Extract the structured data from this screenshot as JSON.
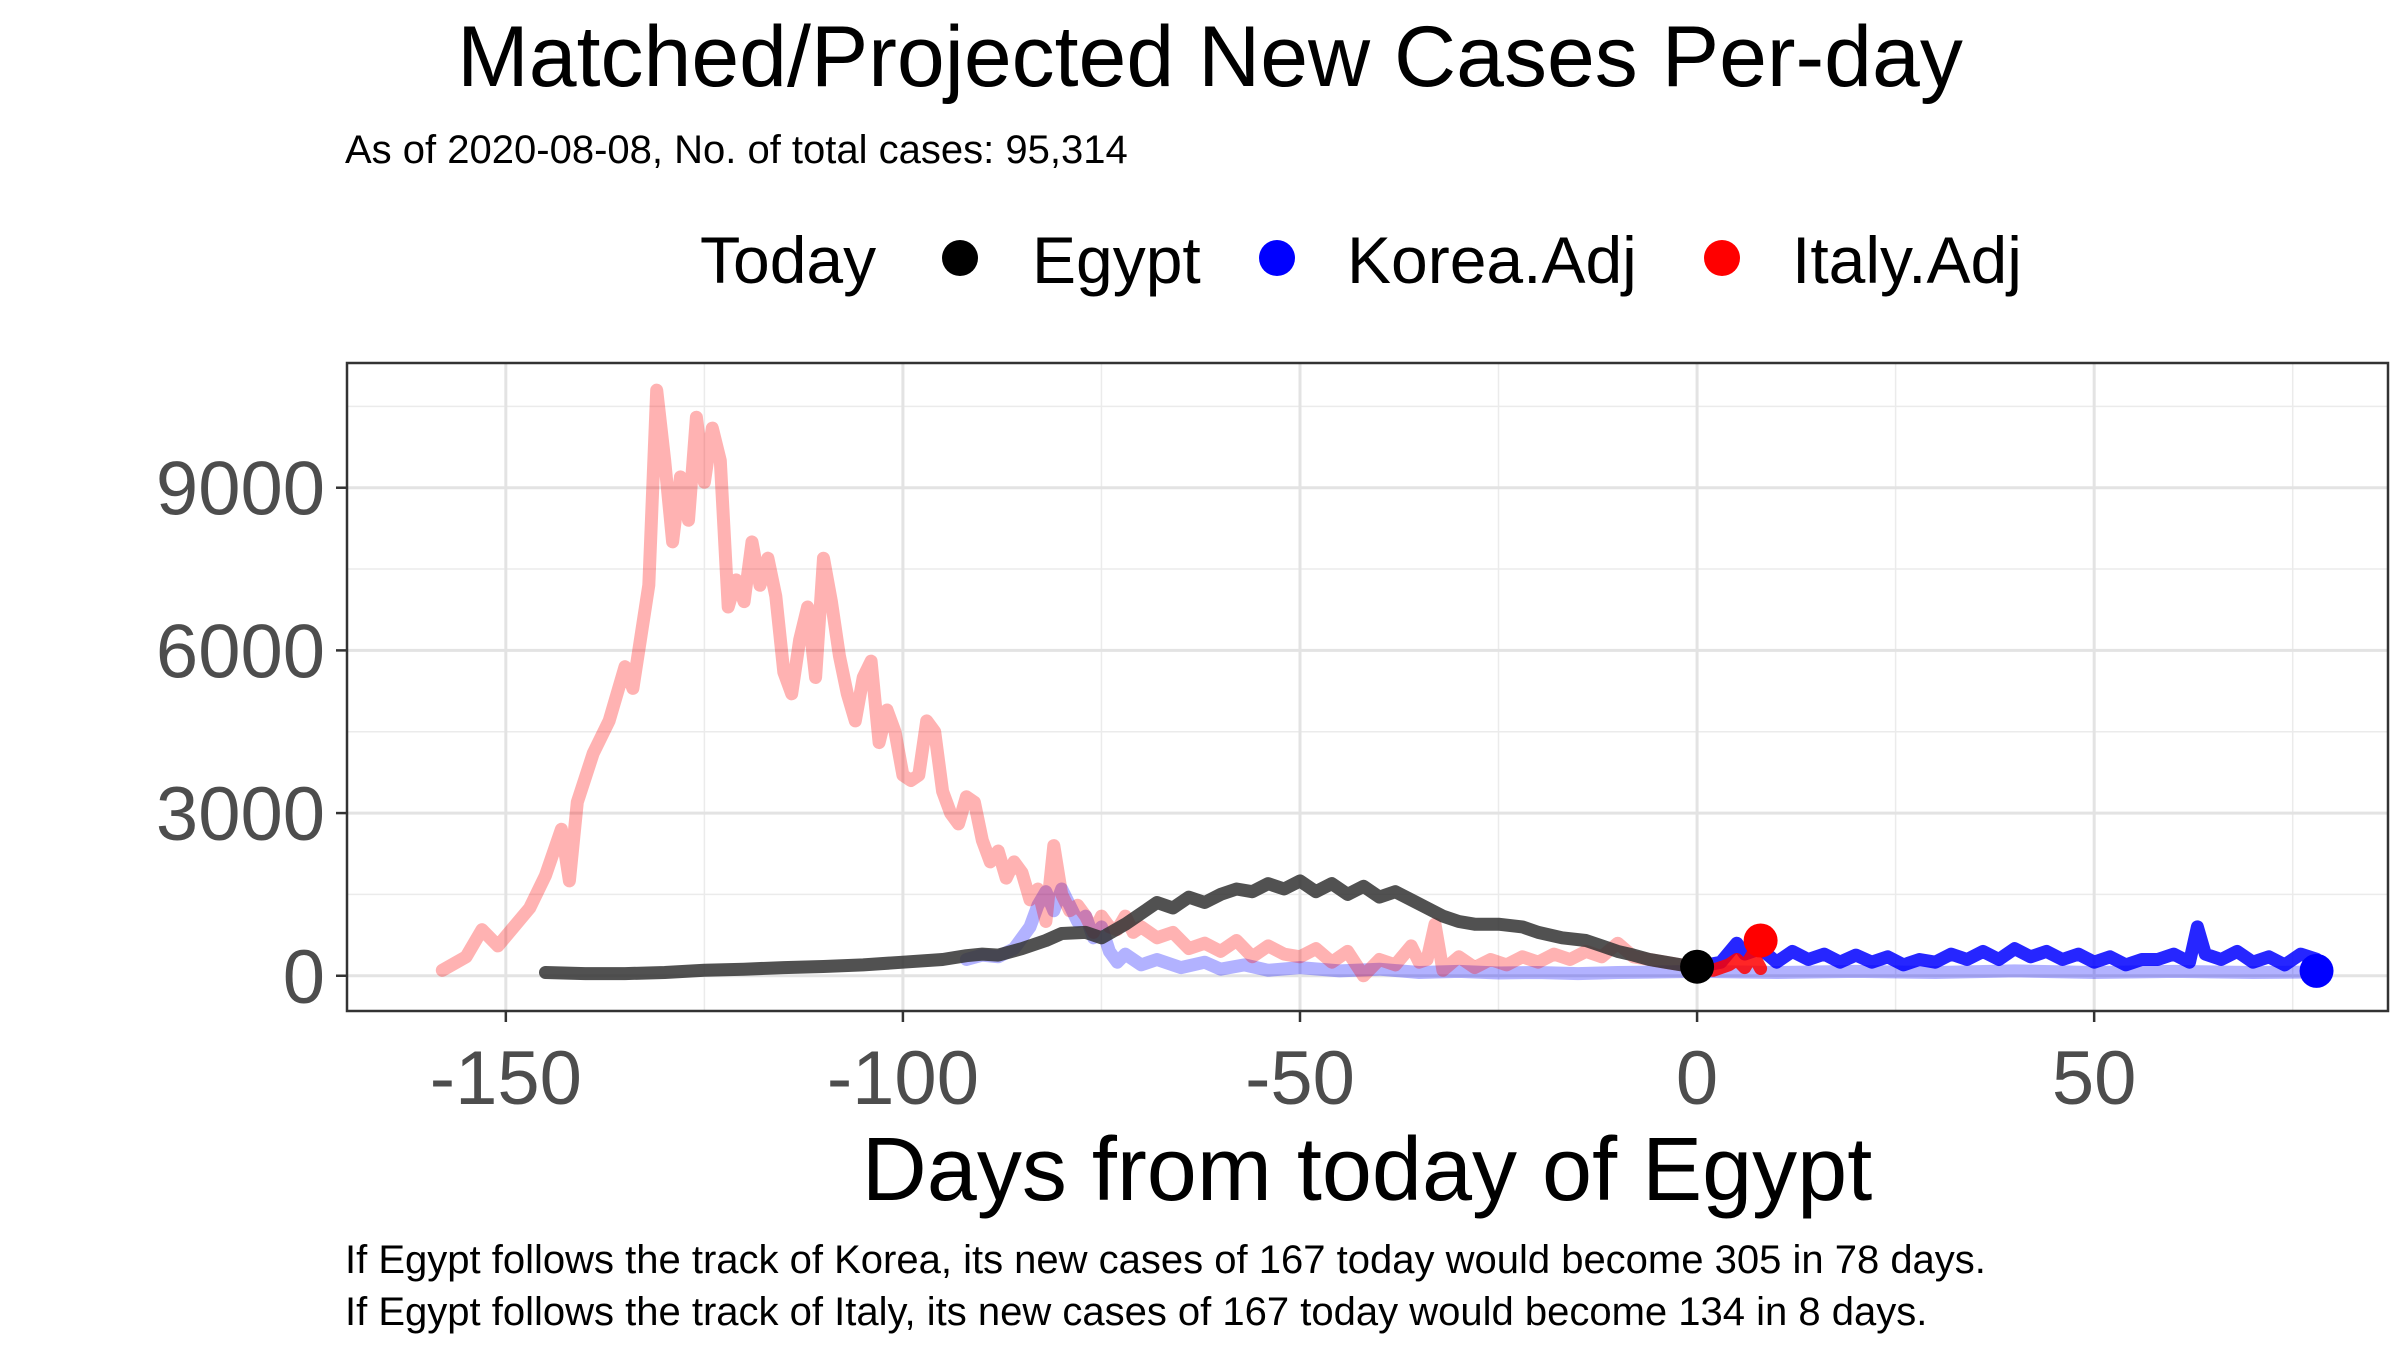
{
  "chart_data": {
    "type": "line",
    "title": "Matched/Projected New Cases Per-day",
    "subtitle": "As of 2020-08-08, No. of total cases: 95,314",
    "xlabel": "Days from today of Egypt",
    "ylabel": "",
    "xlim": [
      -170,
      87
    ],
    "ylim": [
      -650,
      11300
    ],
    "xticks": [
      -150,
      -100,
      -50,
      0,
      50
    ],
    "xtick_labels": [
      "-150",
      "-100",
      "-50",
      "0",
      "50"
    ],
    "yticks": [
      0,
      3000,
      6000,
      9000
    ],
    "ytick_labels": [
      "0",
      "3000",
      "6000",
      "9000"
    ],
    "grid": true,
    "legend_position": "top",
    "legend": {
      "title": "Today",
      "entries": [
        {
          "label": "Egypt",
          "color": "#000000"
        },
        {
          "label": "Korea.Adj",
          "color": "#0000ff"
        },
        {
          "label": "Italy.Adj",
          "color": "#ff0000"
        }
      ]
    },
    "series": [
      {
        "name": "Egypt",
        "role": "observed",
        "color": "#333333",
        "points": [
          [
            -145,
            60
          ],
          [
            -140,
            40
          ],
          [
            -135,
            40
          ],
          [
            -130,
            60
          ],
          [
            -125,
            100
          ],
          [
            -120,
            120
          ],
          [
            -115,
            150
          ],
          [
            -110,
            170
          ],
          [
            -105,
            200
          ],
          [
            -100,
            250
          ],
          [
            -95,
            300
          ],
          [
            -92,
            370
          ],
          [
            -90,
            400
          ],
          [
            -88,
            380
          ],
          [
            -85,
            500
          ],
          [
            -82,
            650
          ],
          [
            -80,
            780
          ],
          [
            -77,
            800
          ],
          [
            -75,
            700
          ],
          [
            -72,
            950
          ],
          [
            -70,
            1150
          ],
          [
            -68,
            1350
          ],
          [
            -66,
            1250
          ],
          [
            -64,
            1450
          ],
          [
            -62,
            1350
          ],
          [
            -60,
            1500
          ],
          [
            -58,
            1600
          ],
          [
            -56,
            1550
          ],
          [
            -54,
            1700
          ],
          [
            -52,
            1600
          ],
          [
            -50,
            1750
          ],
          [
            -48,
            1550
          ],
          [
            -46,
            1700
          ],
          [
            -44,
            1500
          ],
          [
            -42,
            1650
          ],
          [
            -40,
            1450
          ],
          [
            -38,
            1550
          ],
          [
            -36,
            1400
          ],
          [
            -34,
            1250
          ],
          [
            -32,
            1100
          ],
          [
            -30,
            1000
          ],
          [
            -28,
            950
          ],
          [
            -25,
            950
          ],
          [
            -22,
            900
          ],
          [
            -20,
            800
          ],
          [
            -17,
            700
          ],
          [
            -14,
            650
          ],
          [
            -12,
            550
          ],
          [
            -10,
            450
          ],
          [
            -8,
            380
          ],
          [
            -6,
            300
          ],
          [
            -4,
            250
          ],
          [
            -2,
            200
          ],
          [
            0,
            167
          ]
        ]
      },
      {
        "name": "Korea.Adj",
        "role": "matched",
        "color": "#0000ff",
        "opacity": 0.3,
        "points": [
          [
            -92,
            300
          ],
          [
            -90,
            380
          ],
          [
            -88,
            350
          ],
          [
            -86,
            500
          ],
          [
            -84,
            900
          ],
          [
            -83,
            1300
          ],
          [
            -82,
            1550
          ],
          [
            -81,
            1200
          ],
          [
            -80,
            1600
          ],
          [
            -79,
            1300
          ],
          [
            -78,
            1000
          ],
          [
            -77,
            1100
          ],
          [
            -76,
            700
          ],
          [
            -75,
            900
          ],
          [
            -74,
            450
          ],
          [
            -73,
            250
          ],
          [
            -72,
            400
          ],
          [
            -70,
            200
          ],
          [
            -68,
            300
          ],
          [
            -65,
            150
          ],
          [
            -62,
            250
          ],
          [
            -60,
            120
          ],
          [
            -57,
            200
          ],
          [
            -54,
            100
          ],
          [
            -50,
            150
          ],
          [
            -45,
            90
          ],
          [
            -40,
            120
          ],
          [
            -35,
            60
          ],
          [
            -30,
            80
          ],
          [
            -25,
            50
          ],
          [
            -20,
            60
          ],
          [
            -15,
            40
          ],
          [
            -10,
            60
          ],
          [
            -5,
            70
          ],
          [
            0,
            80
          ]
        ]
      },
      {
        "name": "Korea.Adj",
        "role": "projected",
        "color": "#0000ff",
        "points": [
          [
            0,
            167
          ],
          [
            3,
            250
          ],
          [
            5,
            600
          ],
          [
            6,
            400
          ],
          [
            8,
            500
          ],
          [
            10,
            250
          ],
          [
            12,
            450
          ],
          [
            14,
            300
          ],
          [
            16,
            400
          ],
          [
            18,
            250
          ],
          [
            20,
            380
          ],
          [
            22,
            250
          ],
          [
            24,
            350
          ],
          [
            26,
            200
          ],
          [
            28,
            300
          ],
          [
            30,
            250
          ],
          [
            32,
            400
          ],
          [
            34,
            300
          ],
          [
            36,
            450
          ],
          [
            38,
            300
          ],
          [
            40,
            500
          ],
          [
            42,
            350
          ],
          [
            44,
            450
          ],
          [
            46,
            300
          ],
          [
            48,
            400
          ],
          [
            50,
            250
          ],
          [
            52,
            350
          ],
          [
            54,
            200
          ],
          [
            56,
            300
          ],
          [
            58,
            300
          ],
          [
            60,
            400
          ],
          [
            62,
            250
          ],
          [
            63,
            900
          ],
          [
            64,
            400
          ],
          [
            66,
            300
          ],
          [
            68,
            450
          ],
          [
            70,
            250
          ],
          [
            72,
            350
          ],
          [
            74,
            200
          ],
          [
            76,
            400
          ],
          [
            78,
            305
          ]
        ]
      },
      {
        "name": "Korea.Adj",
        "role": "projected-band",
        "color": "#0000ff",
        "opacity": 0.3,
        "points": [
          [
            0,
            80
          ],
          [
            10,
            60
          ],
          [
            20,
            80
          ],
          [
            30,
            60
          ],
          [
            40,
            90
          ],
          [
            50,
            60
          ],
          [
            60,
            80
          ],
          [
            70,
            60
          ],
          [
            78,
            70
          ]
        ]
      },
      {
        "name": "Italy.Adj",
        "role": "matched",
        "color": "#ff0000",
        "opacity": 0.3,
        "points": [
          [
            -158,
            100
          ],
          [
            -155,
            350
          ],
          [
            -153,
            850
          ],
          [
            -151,
            550
          ],
          [
            -149,
            900
          ],
          [
            -147,
            1250
          ],
          [
            -145,
            1850
          ],
          [
            -143,
            2700
          ],
          [
            -142,
            1750
          ],
          [
            -141,
            3200
          ],
          [
            -139,
            4100
          ],
          [
            -137,
            4700
          ],
          [
            -135,
            5700
          ],
          [
            -134,
            5300
          ],
          [
            -132,
            7200
          ],
          [
            -131,
            10800
          ],
          [
            -130,
            9500
          ],
          [
            -129,
            8000
          ],
          [
            -128,
            9200
          ],
          [
            -127,
            8400
          ],
          [
            -126,
            10300
          ],
          [
            -125,
            9100
          ],
          [
            -124,
            10100
          ],
          [
            -123,
            9500
          ],
          [
            -122,
            6800
          ],
          [
            -121,
            7300
          ],
          [
            -120,
            6900
          ],
          [
            -119,
            8000
          ],
          [
            -118,
            7200
          ],
          [
            -117,
            7700
          ],
          [
            -116,
            7000
          ],
          [
            -115,
            5600
          ],
          [
            -114,
            5200
          ],
          [
            -113,
            6200
          ],
          [
            -112,
            6800
          ],
          [
            -111,
            5500
          ],
          [
            -110,
            7700
          ],
          [
            -109,
            6900
          ],
          [
            -108,
            5900
          ],
          [
            -107,
            5200
          ],
          [
            -106,
            4700
          ],
          [
            -105,
            5500
          ],
          [
            -104,
            5800
          ],
          [
            -103,
            4300
          ],
          [
            -102,
            4900
          ],
          [
            -101,
            4500
          ],
          [
            -100,
            3700
          ],
          [
            -99,
            3600
          ],
          [
            -98,
            3700
          ],
          [
            -97,
            4700
          ],
          [
            -96,
            4500
          ],
          [
            -95,
            3400
          ],
          [
            -94,
            3000
          ],
          [
            -93,
            2800
          ],
          [
            -92,
            3300
          ],
          [
            -91,
            3200
          ],
          [
            -90,
            2500
          ],
          [
            -89,
            2100
          ],
          [
            -88,
            2300
          ],
          [
            -87,
            1800
          ],
          [
            -86,
            2100
          ],
          [
            -85,
            1900
          ],
          [
            -84,
            1400
          ],
          [
            -83,
            1600
          ],
          [
            -82,
            1000
          ],
          [
            -81,
            2400
          ],
          [
            -80,
            1500
          ],
          [
            -79,
            1200
          ],
          [
            -78,
            1300
          ],
          [
            -77,
            1100
          ],
          [
            -76,
            800
          ],
          [
            -75,
            1100
          ],
          [
            -74,
            900
          ],
          [
            -73,
            850
          ],
          [
            -72,
            1100
          ],
          [
            -71,
            800
          ],
          [
            -70,
            900
          ],
          [
            -68,
            700
          ],
          [
            -66,
            800
          ],
          [
            -64,
            500
          ],
          [
            -62,
            600
          ],
          [
            -60,
            450
          ],
          [
            -58,
            650
          ],
          [
            -56,
            350
          ],
          [
            -54,
            550
          ],
          [
            -52,
            400
          ],
          [
            -50,
            350
          ],
          [
            -48,
            500
          ],
          [
            -46,
            250
          ],
          [
            -44,
            450
          ],
          [
            -42,
            0
          ],
          [
            -40,
            300
          ],
          [
            -38,
            200
          ],
          [
            -36,
            550
          ],
          [
            -35,
            250
          ],
          [
            -34,
            300
          ],
          [
            -33,
            950
          ],
          [
            -32,
            100
          ],
          [
            -30,
            350
          ],
          [
            -28,
            150
          ],
          [
            -26,
            300
          ],
          [
            -24,
            200
          ],
          [
            -22,
            350
          ],
          [
            -20,
            250
          ],
          [
            -18,
            400
          ],
          [
            -16,
            300
          ],
          [
            -14,
            450
          ],
          [
            -12,
            350
          ],
          [
            -10,
            600
          ],
          [
            -8,
            350
          ],
          [
            -6,
            300
          ],
          [
            -4,
            250
          ],
          [
            -2,
            200
          ],
          [
            0,
            150
          ]
        ]
      },
      {
        "name": "Italy.Adj",
        "role": "projected",
        "color": "#ff0000",
        "points": [
          [
            0,
            150
          ],
          [
            2,
            100
          ],
          [
            4,
            200
          ],
          [
            5,
            300
          ],
          [
            6,
            150
          ],
          [
            7,
            400
          ],
          [
            8,
            134
          ]
        ]
      }
    ],
    "today_markers": [
      {
        "name": "Egypt",
        "x": 0,
        "y": 167,
        "color": "#000000"
      },
      {
        "name": "Korea.Adj",
        "x": 78,
        "y": 90,
        "color": "#0000ff"
      },
      {
        "name": "Italy.Adj",
        "x": 8,
        "y": 650,
        "color": "#ff0000"
      }
    ],
    "captions": [
      "If Egypt follows the track of Korea, its new cases of 167 today would become 305 in 78 days.",
      "If Egypt follows the track of Italy, its new cases of 167 today would become 134 in 8 days."
    ]
  }
}
